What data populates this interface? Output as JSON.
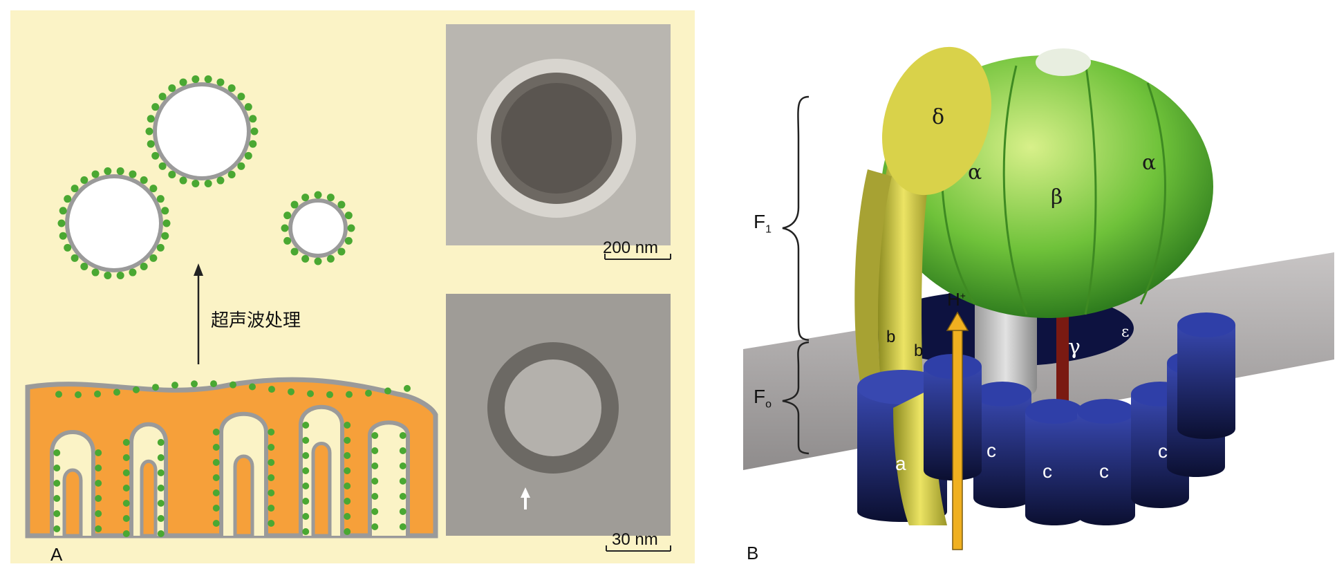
{
  "panel_a": {
    "letter": "A",
    "process_label": "超声波处理",
    "scale_top": "200 nm",
    "scale_bottom": "30 nm"
  },
  "panel_b": {
    "letter": "B",
    "f1_label": "F",
    "f1_sub": "1",
    "fo_label": "F",
    "fo_sub": "o",
    "proton": "H",
    "proton_sup": "+",
    "delta": "δ",
    "alpha_left": "α",
    "beta": "β",
    "alpha_right": "α",
    "gamma": "γ",
    "epsilon": "ε",
    "b1": "b",
    "b2": "b",
    "a": "a",
    "c1": "c",
    "c2": "c",
    "c3": "c",
    "c4": "c"
  },
  "colors": {
    "panel_bg": "#fbf3c6",
    "matrix": "#f6a03a",
    "membrane": "#9a9a9a",
    "particle": "#4caf3a",
    "f1_green": "#7ecb3c",
    "stalk_yellow": "#d9d24a",
    "c_ring_blue": "#1e2a78",
    "epsilon_red": "#8a1f14",
    "proton_arrow": "#f0b020"
  }
}
